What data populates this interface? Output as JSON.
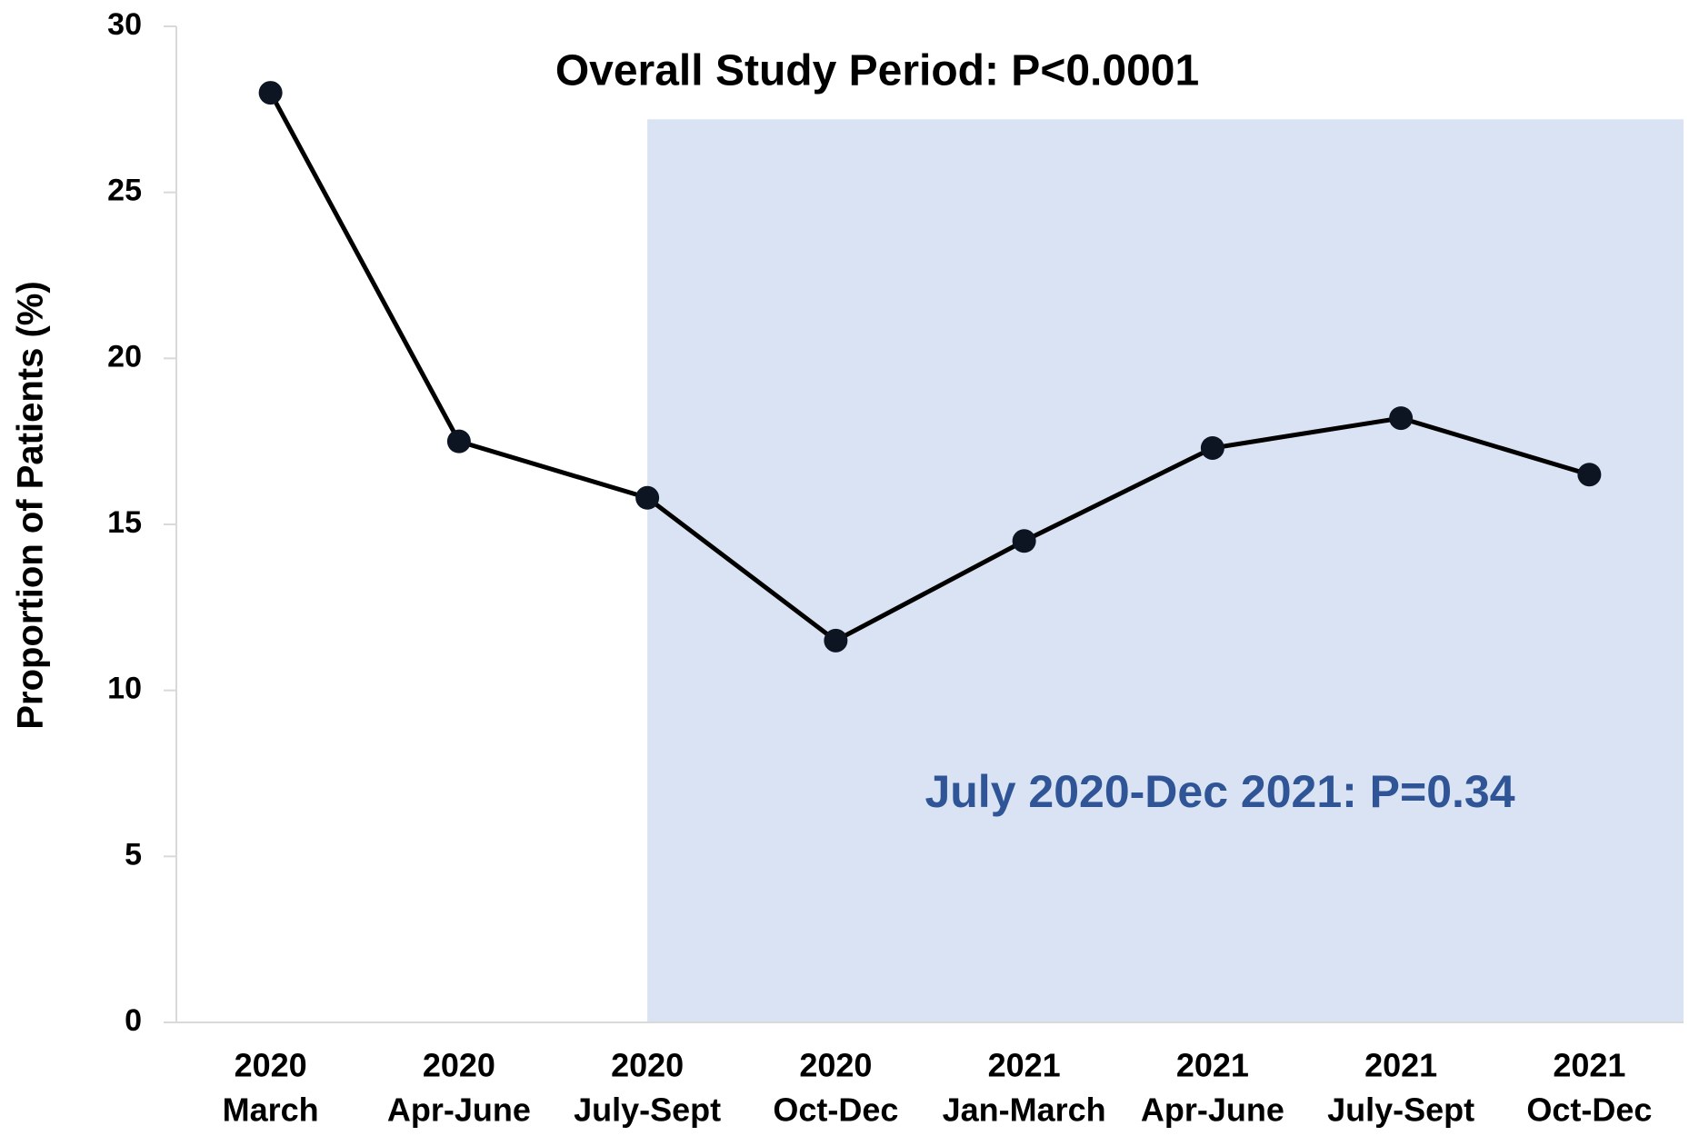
{
  "chart_data": {
    "type": "line",
    "y_label": "Proportion of Patients (%)",
    "annotations": [
      {
        "text": "Overall Study Period: P<0.0001",
        "color": "#000000"
      },
      {
        "text": "July 2020-Dec 2021: P=0.34",
        "color": "#2f5597"
      }
    ],
    "categories": [
      [
        "2020",
        "March"
      ],
      [
        "2020",
        "Apr-June"
      ],
      [
        "2020",
        "July-Sept"
      ],
      [
        "2020",
        "Oct-Dec"
      ],
      [
        "2021",
        "Jan-March"
      ],
      [
        "2021",
        "Apr-June"
      ],
      [
        "2021",
        "July-Sept"
      ],
      [
        "2021",
        "Oct-Dec"
      ]
    ],
    "values": [
      28,
      17.5,
      15.8,
      11.5,
      14.5,
      17.3,
      18.2,
      16.5
    ],
    "color": "#000000",
    "highlight": {
      "start_index": 2,
      "top": 27.2,
      "color": "#dae3f3"
    },
    "ylim": [
      0,
      30
    ],
    "yticks": [
      0,
      5,
      10,
      15,
      20,
      25,
      30
    ],
    "grid": false
  }
}
